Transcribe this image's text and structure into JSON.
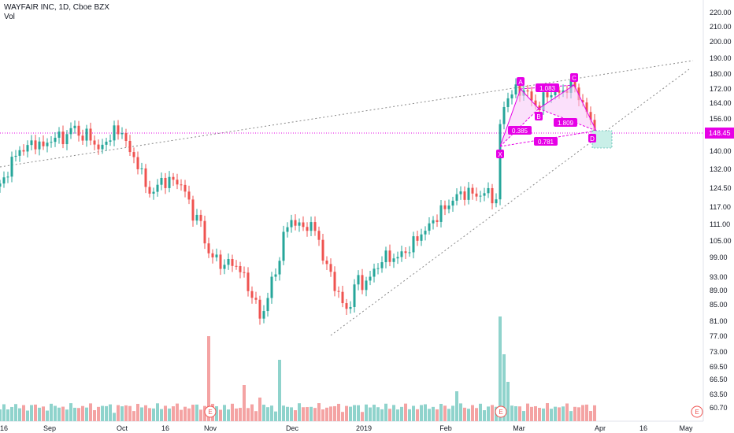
{
  "header": {
    "symbol_line": "WAYFAIR INC, 1D, Cboe BZX",
    "volume_label": "Vol"
  },
  "colors": {
    "up": "#26a69a",
    "down": "#ef5350",
    "up_vol": "#8fd3cc",
    "down_vol": "#f4a3a3",
    "pattern": "#e600e6",
    "pattern_fill": "#f7c6f7",
    "target_fill": "#c9efe8",
    "trendline": "#888888",
    "price_line": "#e600e6"
  },
  "price_axis": {
    "labels": [
      "220.00",
      "210.00",
      "200.00",
      "190.00",
      "180.00",
      "172.00",
      "164.00",
      "156.00",
      "148.00",
      "140.00",
      "132.00",
      "124.50",
      "117.00",
      "111.00",
      "105.00",
      "99.00",
      "93.00",
      "89.00",
      "85.00",
      "81.00",
      "77.00",
      "73.00",
      "69.50",
      "66.50",
      "63.50",
      "60.70"
    ],
    "current_price": "148.45"
  },
  "time_axis": {
    "labels": [
      "16",
      "Sep",
      "Oct",
      "16",
      "Nov",
      "Dec",
      "2019",
      "Feb",
      "Mar",
      "Apr",
      "16",
      "May"
    ]
  },
  "earnings_markers": [
    "E",
    "E",
    "E"
  ],
  "harmonic_pattern": {
    "points": [
      "X",
      "A",
      "B",
      "C",
      "D"
    ],
    "ratios": [
      "1.083",
      "0.385",
      "1.809",
      "0.781"
    ]
  },
  "chart_data": {
    "type": "candlestick",
    "title": "WAYFAIR INC, 1D, Cboe BZX",
    "ylabel": "",
    "xlabel": "",
    "ylim": [
      58,
      226
    ],
    "y_scale": "log",
    "period": "1D",
    "date_range": [
      "2018-08-16",
      "2019-03-28"
    ],
    "price_samples": [
      {
        "date": "2018-08-20",
        "close": 124.0
      },
      {
        "date": "2018-09-04",
        "close": 140.0
      },
      {
        "date": "2018-09-10",
        "close": 150.0
      },
      {
        "date": "2018-09-27",
        "close": 150.0
      },
      {
        "date": "2018-10-10",
        "close": 126.0
      },
      {
        "date": "2018-10-25",
        "close": 103.0
      },
      {
        "date": "2018-11-01",
        "close": 97.0
      },
      {
        "date": "2018-11-20",
        "close": 79.0
      },
      {
        "date": "2018-11-30",
        "close": 115.0
      },
      {
        "date": "2018-12-07",
        "close": 107.0
      },
      {
        "date": "2018-12-21",
        "close": 80.0
      },
      {
        "date": "2019-01-04",
        "close": 95.0
      },
      {
        "date": "2019-01-18",
        "close": 99.0
      },
      {
        "date": "2019-02-01",
        "close": 112.0
      },
      {
        "date": "2019-02-11",
        "close": 122.0
      },
      {
        "date": "2019-02-20",
        "close": 119.0
      },
      {
        "date": "2019-02-21",
        "close": 158.0
      },
      {
        "date": "2019-02-27",
        "close": 170.0
      },
      {
        "date": "2019-03-06",
        "close": 164.0
      },
      {
        "date": "2019-03-14",
        "close": 172.0
      },
      {
        "date": "2019-03-19",
        "close": 160.0
      },
      {
        "date": "2019-03-28",
        "close": 148.45
      }
    ],
    "volume_axis_labels": [
      "60.70"
    ],
    "last_price": 148.45,
    "harmonic_pattern": {
      "X": 142.0,
      "A": 171.0,
      "B": 159.0,
      "C": 173.0,
      "D": 149.0,
      "ratios": {
        "AB_XA": 0.385,
        "BC_AB": 1.083,
        "CD_BC": 1.809,
        "AD_XA": 0.781
      }
    },
    "horizontal_line": 148.45,
    "legend": "none",
    "grid": false
  }
}
